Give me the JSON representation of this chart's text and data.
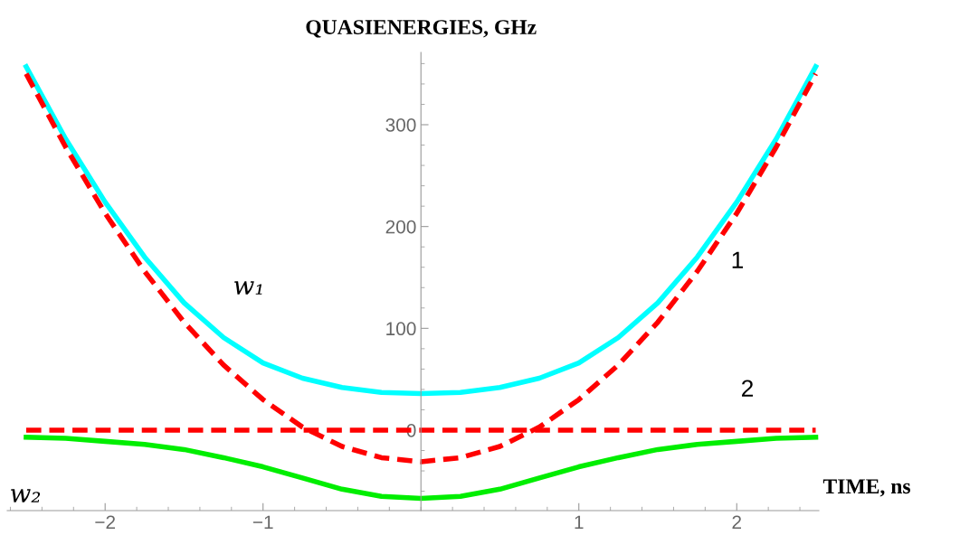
{
  "chart_data": {
    "type": "line",
    "ylabel": "QUASIENERGIES, GHz",
    "xlabel": "TIME, ns",
    "x": [
      -2.5,
      -2.25,
      -2,
      -1.75,
      -1.5,
      -1.25,
      -1,
      -0.75,
      -0.5,
      -0.25,
      0,
      0.25,
      0.5,
      0.75,
      1,
      1.25,
      1.5,
      1.75,
      2,
      2.25,
      2.5
    ],
    "series": [
      {
        "color": "#00ffff",
        "line_style": "solid",
        "values": [
          357,
          286,
          224,
          170,
          125,
          91,
          66,
          51,
          42,
          37,
          36,
          37,
          42,
          51,
          66,
          91,
          125,
          170,
          224,
          286,
          357
        ]
      },
      {
        "color": "#ff0000",
        "line_style": "dashed",
        "values": [
          350,
          278,
          213,
          156,
          106,
          64,
          30,
          3,
          -16,
          -27,
          -31,
          -27,
          -16,
          3,
          30,
          64,
          106,
          156,
          213,
          278,
          350
        ]
      },
      {
        "color": "#ff0000",
        "line_style": "dashed",
        "values": [
          0,
          0,
          0,
          0,
          0,
          0,
          0,
          0,
          0,
          0,
          0,
          0,
          0,
          0,
          0,
          0,
          0,
          0,
          0,
          0,
          0
        ]
      },
      {
        "color": "#00ee00",
        "line_style": "solid",
        "values": [
          -7,
          -8,
          -11,
          -14,
          -19,
          -27,
          -36,
          -47,
          -58,
          -65,
          -67,
          -65,
          -58,
          -47,
          -36,
          -27,
          -19,
          -14,
          -11,
          -8,
          -7
        ]
      }
    ],
    "xlim": [
      -2.62,
      2.52
    ],
    "ylim": [
      -79,
      371
    ],
    "xticks": [
      -2,
      -1,
      1,
      2
    ],
    "yticks": [
      0,
      100,
      200,
      300
    ],
    "grid": false,
    "legend": false,
    "annotations": [
      "w₁",
      "w₂",
      "1",
      "2"
    ]
  }
}
